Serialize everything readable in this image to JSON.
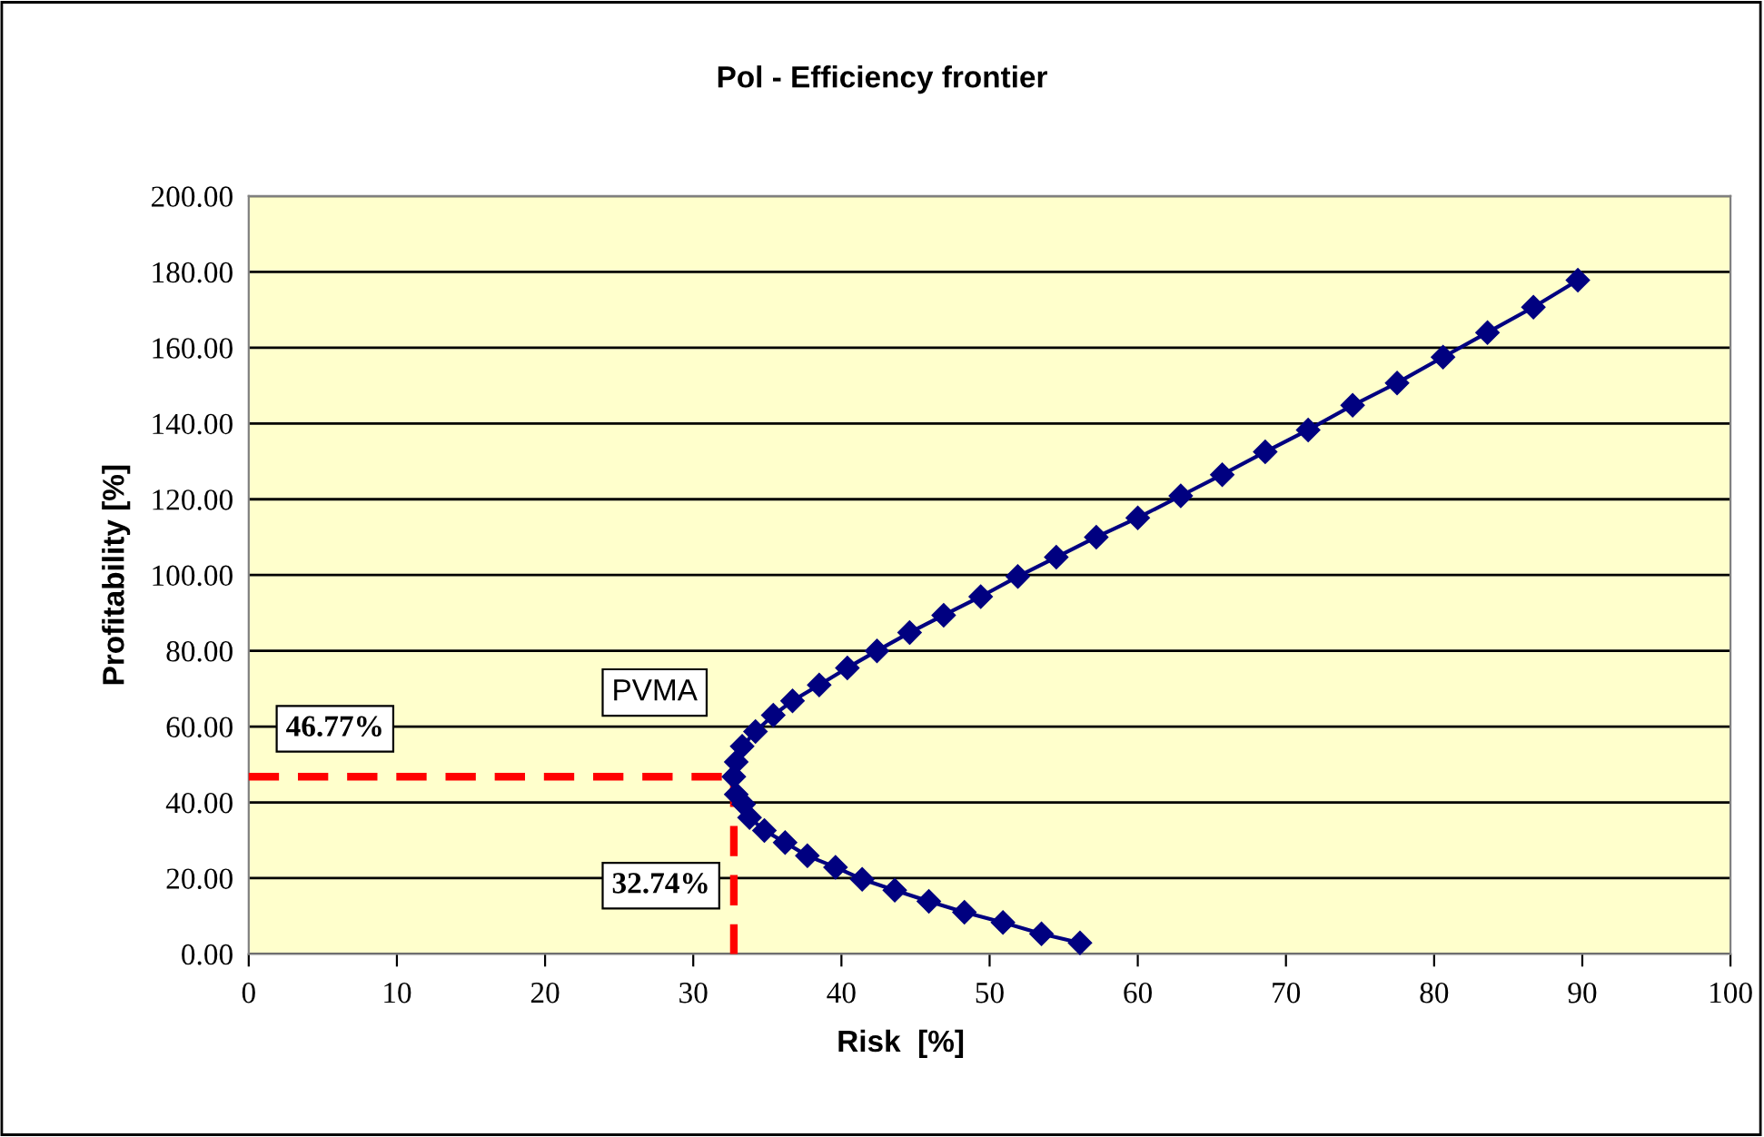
{
  "chart_data": {
    "type": "line",
    "title": "Pol - Efficiency frontier",
    "xlabel": "Risk  [%]",
    "ylabel": "Profitability [%]",
    "xlim": [
      0,
      100
    ],
    "xticks": [
      0,
      10,
      20,
      30,
      40,
      50,
      60,
      70,
      80,
      90,
      100
    ],
    "ylim": [
      0,
      200
    ],
    "yticks": [
      {
        "value": 0,
        "label": "0.00"
      },
      {
        "value": 20,
        "label": "20.00"
      },
      {
        "value": 40,
        "label": "40.00"
      },
      {
        "value": 60,
        "label": "60.00"
      },
      {
        "value": 80,
        "label": "80.00"
      },
      {
        "value": 100,
        "label": "100.00"
      },
      {
        "value": 120,
        "label": "120.00"
      },
      {
        "value": 140,
        "label": "140.00"
      },
      {
        "value": 160,
        "label": "160.00"
      },
      {
        "value": 180,
        "label": "180.00"
      },
      {
        "value": 200,
        "label": "200.00"
      }
    ],
    "grid": "y",
    "series": [
      {
        "color": "#000080",
        "marker": "diamond",
        "line_style": "solid",
        "x": [
          56.1,
          53.5,
          50.9,
          48.3,
          45.9,
          43.6,
          41.4,
          39.6,
          37.7,
          36.2,
          34.8,
          33.8,
          33.4,
          32.9,
          32.74,
          32.9,
          33.3,
          34.2,
          35.4,
          36.7,
          38.5,
          40.4,
          42.4,
          44.6,
          46.9,
          49.4,
          51.9,
          54.5,
          57.2,
          60.0,
          62.9,
          65.7,
          68.6,
          71.5,
          74.5,
          77.5,
          80.6,
          83.6,
          86.7,
          89.7
        ],
        "values": [
          2.9,
          5.3,
          8.3,
          11.0,
          13.9,
          16.8,
          19.7,
          22.9,
          25.9,
          29.4,
          32.6,
          36.0,
          39.5,
          42.1,
          46.77,
          50.7,
          54.8,
          58.7,
          63.0,
          66.8,
          71.0,
          75.5,
          80.0,
          84.8,
          89.4,
          94.3,
          99.6,
          104.7,
          110.0,
          115.1,
          120.9,
          126.5,
          132.5,
          138.3,
          144.8,
          150.7,
          157.5,
          164.0,
          170.7,
          177.8
        ]
      },
      {
        "color": "#ff0000",
        "marker": "none",
        "line_style": "dashed",
        "x": [
          0,
          32.74
        ],
        "values": [
          46.77,
          46.77
        ]
      },
      {
        "color": "#ff0000",
        "marker": "none",
        "line_style": "dashed",
        "x": [
          32.74,
          32.74
        ],
        "values": [
          46.77,
          0
        ]
      }
    ],
    "annotations": [
      "PVMA",
      "46.77%",
      "32.74%"
    ]
  }
}
